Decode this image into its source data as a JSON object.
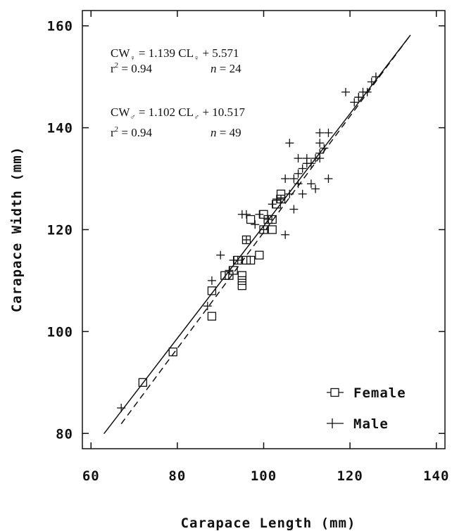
{
  "chart_data": {
    "type": "scatter",
    "xlabel": "Carapace Length (mm)",
    "ylabel": "Carapace Width (mm)",
    "xlim": [
      58,
      142
    ],
    "ylim": [
      77,
      163
    ],
    "xticks": [
      60,
      80,
      100,
      120,
      140
    ],
    "yticks": [
      80,
      100,
      120,
      140,
      160
    ],
    "legend_position": "bottom-right",
    "series": [
      {
        "name": "Female",
        "marker": "square",
        "points": [
          [
            72,
            90
          ],
          [
            79,
            96
          ],
          [
            88,
            103
          ],
          [
            88,
            108
          ],
          [
            91,
            111
          ],
          [
            92,
            111
          ],
          [
            93,
            112
          ],
          [
            94,
            114
          ],
          [
            95,
            111
          ],
          [
            95,
            109
          ],
          [
            95,
            110
          ],
          [
            96,
            118
          ],
          [
            96,
            114
          ],
          [
            97,
            114
          ],
          [
            97,
            122
          ],
          [
            99,
            115
          ],
          [
            100,
            120
          ],
          [
            100,
            123
          ],
          [
            101,
            122
          ],
          [
            102,
            120
          ],
          [
            102,
            122
          ],
          [
            103,
            125
          ],
          [
            104,
            127
          ],
          [
            104,
            126
          ]
        ],
        "fit": {
          "slope": 1.139,
          "intercept": 5.571,
          "x_range": [
            67,
            134
          ],
          "style": "dashed"
        }
      },
      {
        "name": "Male",
        "marker": "plus",
        "points": [
          [
            67,
            85
          ],
          [
            87,
            105
          ],
          [
            88,
            110
          ],
          [
            90,
            115
          ],
          [
            92,
            112
          ],
          [
            93,
            114
          ],
          [
            94,
            114
          ],
          [
            95,
            123
          ],
          [
            96,
            123
          ],
          [
            96,
            118
          ],
          [
            98,
            121
          ],
          [
            99,
            123
          ],
          [
            100,
            120
          ],
          [
            101,
            122
          ],
          [
            102,
            125
          ],
          [
            103,
            126
          ],
          [
            104,
            126
          ],
          [
            105,
            119
          ],
          [
            105,
            130
          ],
          [
            106,
            127
          ],
          [
            106,
            137
          ],
          [
            107,
            124
          ],
          [
            107,
            130
          ],
          [
            108,
            131
          ],
          [
            108,
            134
          ],
          [
            108,
            129
          ],
          [
            109,
            132
          ],
          [
            109,
            127
          ],
          [
            110,
            133
          ],
          [
            110,
            134
          ],
          [
            111,
            129
          ],
          [
            111,
            133
          ],
          [
            112,
            128
          ],
          [
            112,
            134
          ],
          [
            113,
            134
          ],
          [
            113,
            135
          ],
          [
            113,
            137
          ],
          [
            113,
            139
          ],
          [
            114,
            136
          ],
          [
            115,
            130
          ],
          [
            115,
            139
          ],
          [
            119,
            147
          ],
          [
            121,
            145
          ],
          [
            122,
            146
          ],
          [
            122,
            146
          ],
          [
            123,
            147
          ],
          [
            124,
            147
          ],
          [
            125,
            149
          ],
          [
            126,
            150
          ]
        ],
        "fit": {
          "slope": 1.102,
          "intercept": 10.517,
          "x_range": [
            63,
            134
          ],
          "style": "solid"
        }
      }
    ],
    "annotations": {
      "female": {
        "eq_lhs": "CW",
        "sym": "♀",
        "eq_mid": " = 1.139 CL",
        "eq_rhs": " + 5.571",
        "r2_label": "r",
        "r2_sup": "2",
        "r2_value": " = 0.94",
        "n_label": "n",
        "n_value": " = 24"
      },
      "male": {
        "eq_lhs": "CW",
        "sym": "♂",
        "eq_mid": " = 1.102 CL",
        "eq_rhs": " + 10.517",
        "r2_label": "r",
        "r2_sup": "2",
        "r2_value": " = 0.94",
        "n_label": "n",
        "n_value": " = 49"
      }
    }
  }
}
